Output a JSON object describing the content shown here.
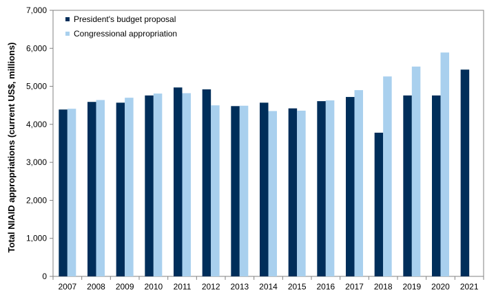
{
  "chart_data": {
    "type": "bar",
    "title": "",
    "xlabel": "",
    "ylabel": "Total NIAID appropriations (current US$, millions)",
    "ylim": [
      0,
      7000
    ],
    "yticks": [
      0,
      1000,
      2000,
      3000,
      4000,
      5000,
      6000,
      7000
    ],
    "ytick_labels": [
      "0",
      "1,000",
      "2,000",
      "3,000",
      "4,000",
      "5,000",
      "6,000",
      "7,000"
    ],
    "categories": [
      "2007",
      "2008",
      "2009",
      "2010",
      "2011",
      "2012",
      "2013",
      "2014",
      "2015",
      "2016",
      "2017",
      "2018",
      "2019",
      "2020",
      "2021"
    ],
    "series": [
      {
        "name": "President's budget proposal",
        "color": "#002e5a",
        "values": [
          4390,
          4590,
          4570,
          4760,
          4970,
          4920,
          4480,
          4570,
          4420,
          4610,
          4720,
          3780,
          4760,
          4760,
          5440
        ]
      },
      {
        "name": "Congressional appropriation",
        "color": "#a9d0ee",
        "values": [
          4410,
          4640,
          4700,
          4810,
          4820,
          4500,
          4490,
          4350,
          4360,
          4630,
          4900,
          5260,
          5520,
          5890,
          null
        ]
      }
    ],
    "legend_position": "top-left",
    "grid": false
  }
}
